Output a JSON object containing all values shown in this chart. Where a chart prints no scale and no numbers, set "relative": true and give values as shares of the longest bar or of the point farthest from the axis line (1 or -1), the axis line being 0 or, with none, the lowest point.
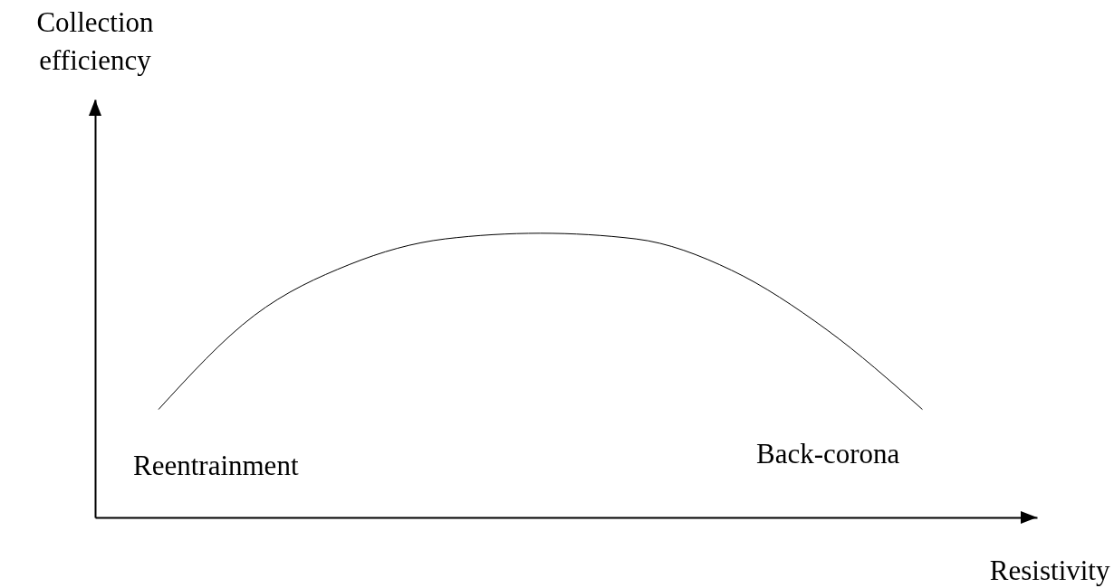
{
  "chart_data": {
    "type": "line",
    "xlabel": "Resistivity",
    "categories": [
      null,
      null,
      null,
      null,
      null,
      null,
      null,
      null,
      null
    ],
    "values": [
      0.38,
      0.71,
      0.89,
      0.98,
      1,
      0.98,
      0.87,
      0.66,
      0.38
    ],
    "color": "#000000",
    "relative": true,
    "tick_labels": false,
    "annotations": [
      "Collection efficiency",
      "Reentrainment",
      "Back-corona"
    ]
  }
}
